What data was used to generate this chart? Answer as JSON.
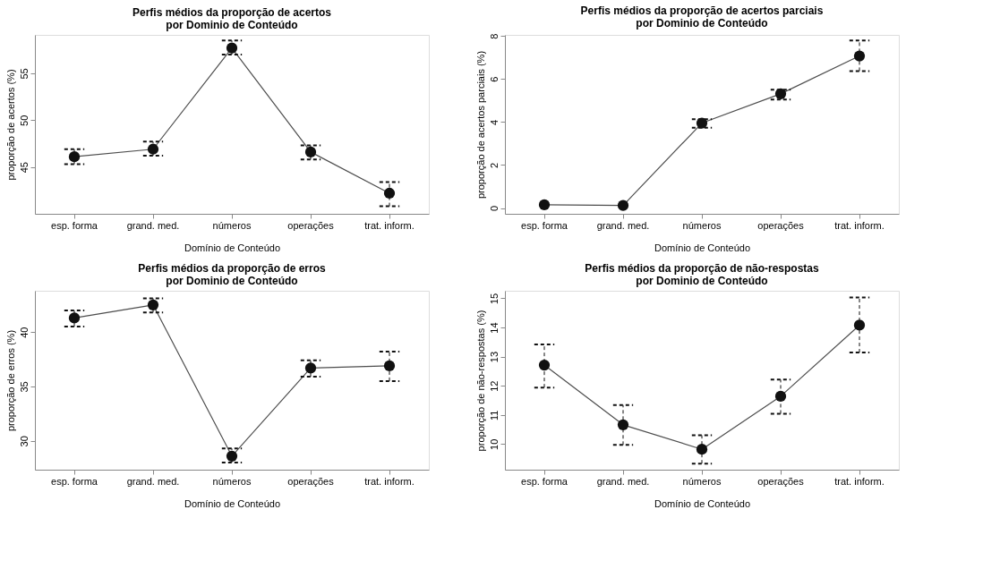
{
  "chart_data": [
    {
      "type": "line",
      "title": [
        "Perfis médios da proporção de acertos",
        "por Dominio de Conteúdo"
      ],
      "xlabel": "Domínio de Conteúdo",
      "ylabel": "proporção de acertos (%)",
      "categories": [
        "esp. forma",
        "grand. med.",
        "números",
        "operações",
        "trat. inform."
      ],
      "ylim": [
        40,
        59.1
      ],
      "yticks": [
        45,
        50,
        55
      ],
      "grid": false,
      "marker": "circle",
      "line_style": "solid",
      "series": [
        {
          "color": "#111111",
          "values": [
            46.1,
            46.9,
            57.7,
            46.6,
            42.2
          ],
          "errors": [
            [
              45.3,
              46.9
            ],
            [
              46.2,
              47.7
            ],
            [
              57.0,
              58.5
            ],
            [
              45.8,
              47.3
            ],
            [
              40.8,
              43.4
            ]
          ]
        }
      ]
    },
    {
      "type": "line",
      "title": [
        "Perfis médios da proporção de acertos parciais",
        "por Dominio de Conteúdo"
      ],
      "xlabel": "Domínio de Conteúdo",
      "ylabel": "proporção de acertos parciais (%)",
      "categories": [
        "esp. forma",
        "grand. med.",
        "números",
        "operações",
        "trat. inform."
      ],
      "ylim": [
        -0.27,
        8.05
      ],
      "yticks": [
        0,
        2,
        4,
        6,
        8
      ],
      "grid": false,
      "marker": "circle",
      "line_style": "solid",
      "series": [
        {
          "color": "#111111",
          "values": [
            0.15,
            0.12,
            3.95,
            5.31,
            7.07
          ],
          "errors": [
            null,
            null,
            [
              3.73,
              4.13
            ],
            [
              5.04,
              5.5
            ],
            [
              6.37,
              7.79
            ]
          ]
        }
      ]
    },
    {
      "type": "line",
      "title": [
        "Perfis médios da proporção de erros",
        "por Dominio de Conteúdo"
      ],
      "xlabel": "Domínio de Conteúdo",
      "ylabel": "proporção de erros (%)",
      "categories": [
        "esp. forma",
        "grand. med.",
        "números",
        "operações",
        "trat. inform."
      ],
      "ylim": [
        27.35,
        43.8
      ],
      "yticks": [
        30,
        35,
        40
      ],
      "grid": false,
      "marker": "circle",
      "line_style": "solid",
      "series": [
        {
          "color": "#111111",
          "values": [
            41.3,
            42.5,
            28.6,
            36.7,
            36.9
          ],
          "errors": [
            [
              40.5,
              42.0
            ],
            [
              41.8,
              43.1
            ],
            [
              28.0,
              29.3
            ],
            [
              35.9,
              37.4
            ],
            [
              35.5,
              38.2
            ]
          ]
        }
      ]
    },
    {
      "type": "line",
      "title": [
        "Perfis médios da proporção de não-respostas",
        "por Dominio de Conteúdo"
      ],
      "xlabel": "Domínio de Conteúdo",
      "ylabel": "proporção de não-respostas (%)",
      "categories": [
        "esp. forma",
        "grand. med.",
        "números",
        "operações",
        "trat. inform."
      ],
      "ylim": [
        9.12,
        15.26
      ],
      "yticks": [
        10,
        11,
        12,
        13,
        14,
        15
      ],
      "grid": false,
      "marker": "circle",
      "line_style": "solid",
      "series": [
        {
          "color": "#111111",
          "values": [
            12.71,
            10.66,
            9.82,
            11.64,
            14.08
          ],
          "errors": [
            [
              11.94,
              13.42
            ],
            [
              9.97,
              11.34
            ],
            [
              9.33,
              10.3
            ],
            [
              11.04,
              12.21
            ],
            [
              13.14,
              15.03
            ]
          ]
        }
      ]
    }
  ]
}
